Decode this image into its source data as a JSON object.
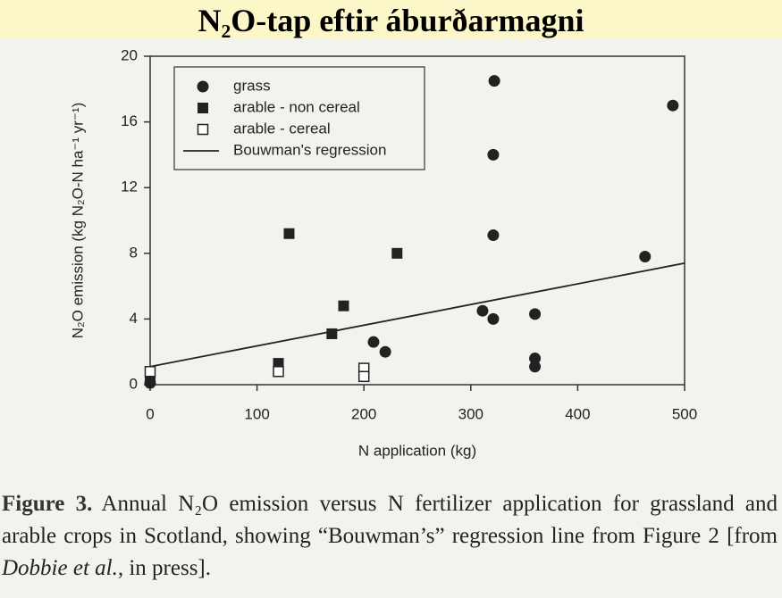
{
  "chart_data": {
    "type": "scatter",
    "title": "N₂O-tap eftir áburðarmagni",
    "x_label": "N application (kg)",
    "y_label": "N₂O emission (kg N₂O-N ha⁻¹ yr⁻¹)",
    "xlim": [
      0,
      500
    ],
    "ylim": [
      0,
      20
    ],
    "xticks": [
      0,
      100,
      200,
      300,
      400,
      500
    ],
    "yticks": [
      0,
      4,
      8,
      12,
      16,
      20
    ],
    "legend": "upper left",
    "series": [
      {
        "name": "grass",
        "color": "#222222",
        "marker": "circle",
        "x": [
          0,
          209,
          220,
          311,
          321,
          321,
          321,
          322,
          360,
          360,
          360,
          463,
          489
        ],
        "values": [
          0.1,
          2.6,
          2.0,
          4.5,
          4.0,
          9.1,
          14.0,
          18.5,
          4.3,
          1.6,
          1.1,
          7.8,
          17.0
        ]
      },
      {
        "name": "arable - non cereal",
        "color": "#222222",
        "marker": "square",
        "x": [
          0,
          120,
          130,
          170,
          181,
          231
        ],
        "values": [
          0.3,
          1.3,
          9.2,
          3.1,
          4.8,
          8.0
        ]
      },
      {
        "name": "arable - cereal",
        "color": "#222222",
        "marker": "open-square",
        "x": [
          0,
          120,
          200,
          200
        ],
        "values": [
          0.8,
          0.8,
          1.0,
          0.5
        ]
      },
      {
        "name": "Bouwman's regression",
        "color": "#222222",
        "marker": "line",
        "x": [
          0,
          500
        ],
        "values": [
          1.1,
          7.4
        ]
      }
    ]
  },
  "caption": {
    "label": "Figure 3.",
    "text": "Annual N₂O emission versus N fertilizer application for grassland and arable crops in Scotland, showing “Bouwman’s” regression line from Figure 2 [from",
    "citation": "Dobbie et al.,",
    "end": "in press]."
  }
}
